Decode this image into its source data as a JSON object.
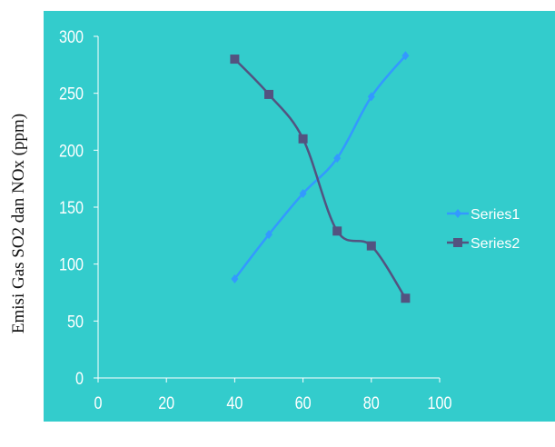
{
  "chart_data": {
    "type": "line",
    "title": "",
    "xlabel": "",
    "ylabel": "Emisi Gas SO2 dan NOx (ppm)",
    "xlim": [
      0,
      100
    ],
    "ylim": [
      0,
      300
    ],
    "x_ticks": [
      "0",
      "20",
      "40",
      "60",
      "80",
      "100"
    ],
    "y_ticks": [
      "0",
      "50",
      "100",
      "150",
      "200",
      "250",
      "300"
    ],
    "grid": false,
    "legend_position": "right",
    "background_color": "#33cccc",
    "series": [
      {
        "name": "Series1",
        "color": "#3399ff",
        "marker": "diamond",
        "x": [
          40,
          50,
          60,
          70,
          80,
          90
        ],
        "values": [
          87,
          126,
          162,
          193,
          247,
          283
        ]
      },
      {
        "name": "Series2",
        "color": "#535380",
        "marker": "square",
        "x": [
          40,
          50,
          60,
          70,
          80,
          90
        ],
        "values": [
          280,
          249,
          210,
          129,
          116,
          70
        ]
      }
    ]
  }
}
